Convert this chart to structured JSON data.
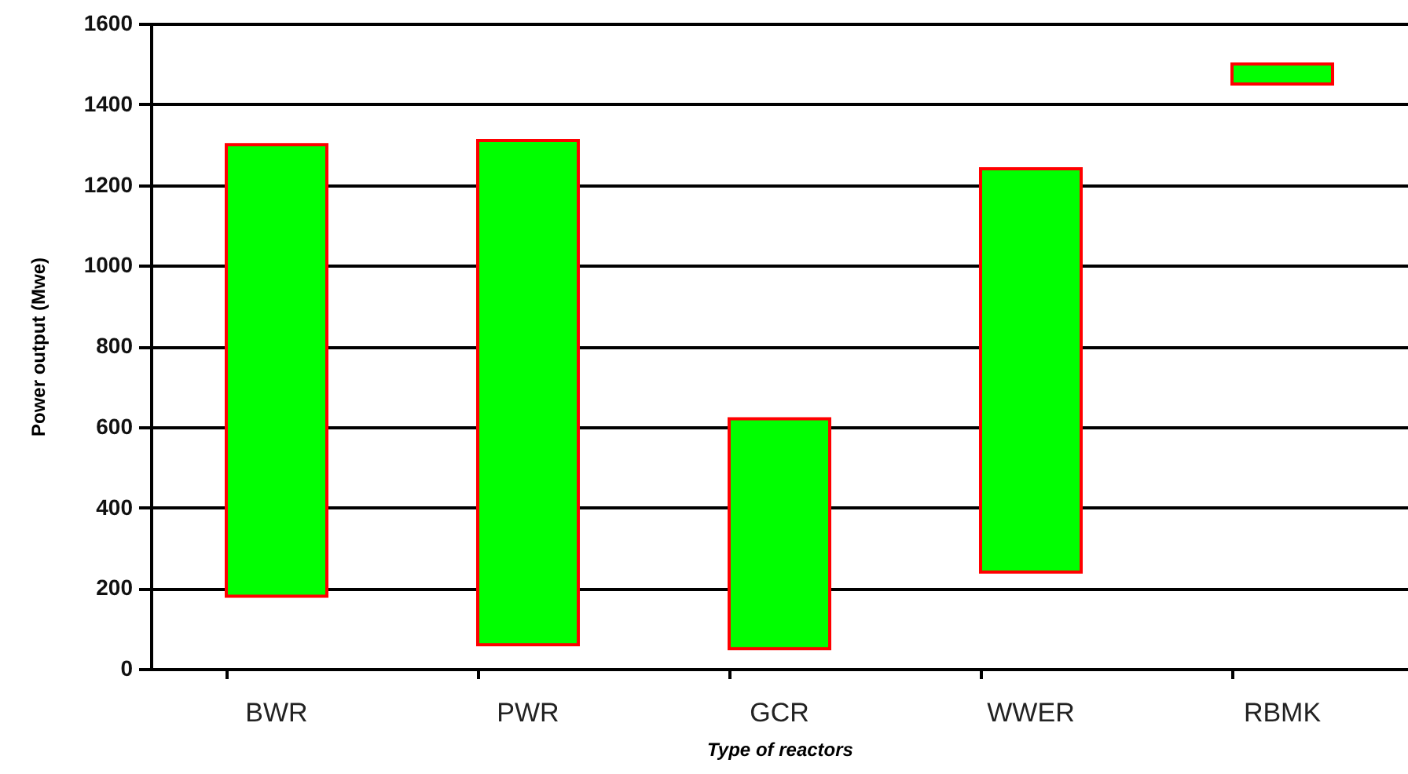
{
  "chart_data": {
    "type": "bar",
    "xlabel": "Type of reactors",
    "ylabel": "Power output (Mwe)",
    "categories": [
      "BWR",
      "PWR",
      "GCR",
      "WWER",
      "RBMK"
    ],
    "base": [
      180,
      60,
      50,
      240,
      1450
    ],
    "values": [
      1120,
      1250,
      570,
      1000,
      50
    ],
    "color": "#00ff00",
    "ylim": [
      0,
      1600
    ],
    "yticks": [
      0,
      200,
      400,
      600,
      800,
      1000,
      1200,
      1400,
      1600
    ],
    "grid": "y"
  }
}
